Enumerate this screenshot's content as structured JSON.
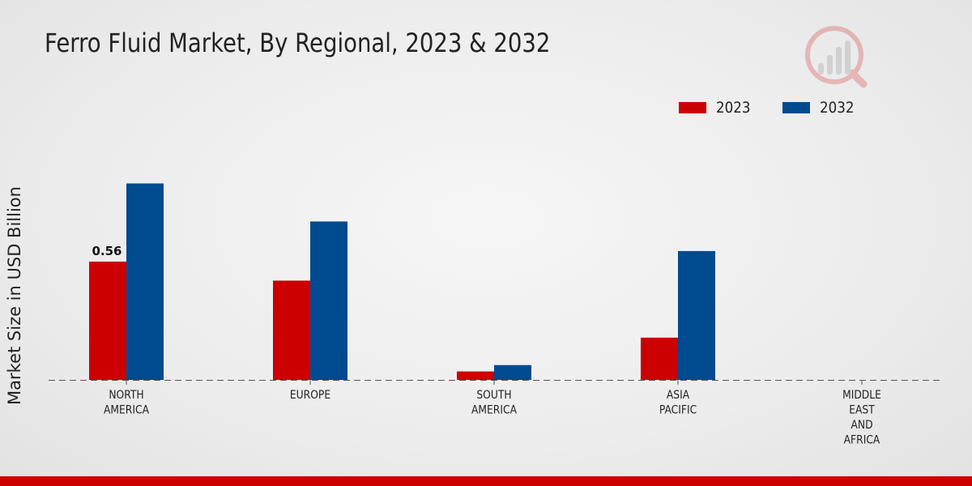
{
  "page": {
    "title": "Ferro Fluid Market, By Regional, 2023 & 2032"
  },
  "colors": {
    "series_2023": "#cc0000",
    "series_2032": "#004a8f",
    "brand_bar": "#cc0000"
  },
  "watermark_icon": "market-research-logo-icon",
  "chart_data": {
    "type": "bar",
    "title": "Ferro Fluid Market, By Regional, 2023 & 2032",
    "xlabel": "",
    "ylabel": "Market Size in USD Billion",
    "categories": [
      [
        "NORTH",
        "AMERICA"
      ],
      [
        "EUROPE"
      ],
      [
        "SOUTH",
        "AMERICA"
      ],
      [
        "ASIA",
        "PACIFIC"
      ],
      [
        "MIDDLE",
        "EAST",
        "AND",
        "AFRICA"
      ]
    ],
    "series": [
      {
        "name": "2023",
        "color": "#cc0000",
        "values": [
          0.56,
          0.47,
          0.04,
          0.2,
          0.0
        ]
      },
      {
        "name": "2032",
        "color": "#004a8f",
        "values": [
          0.93,
          0.75,
          0.07,
          0.61,
          0.0
        ]
      }
    ],
    "data_labels": [
      {
        "series": 0,
        "index": 0,
        "text": "0.56"
      }
    ],
    "ylim": [
      0,
      1.3
    ],
    "grid": false,
    "legend": "top-right"
  }
}
